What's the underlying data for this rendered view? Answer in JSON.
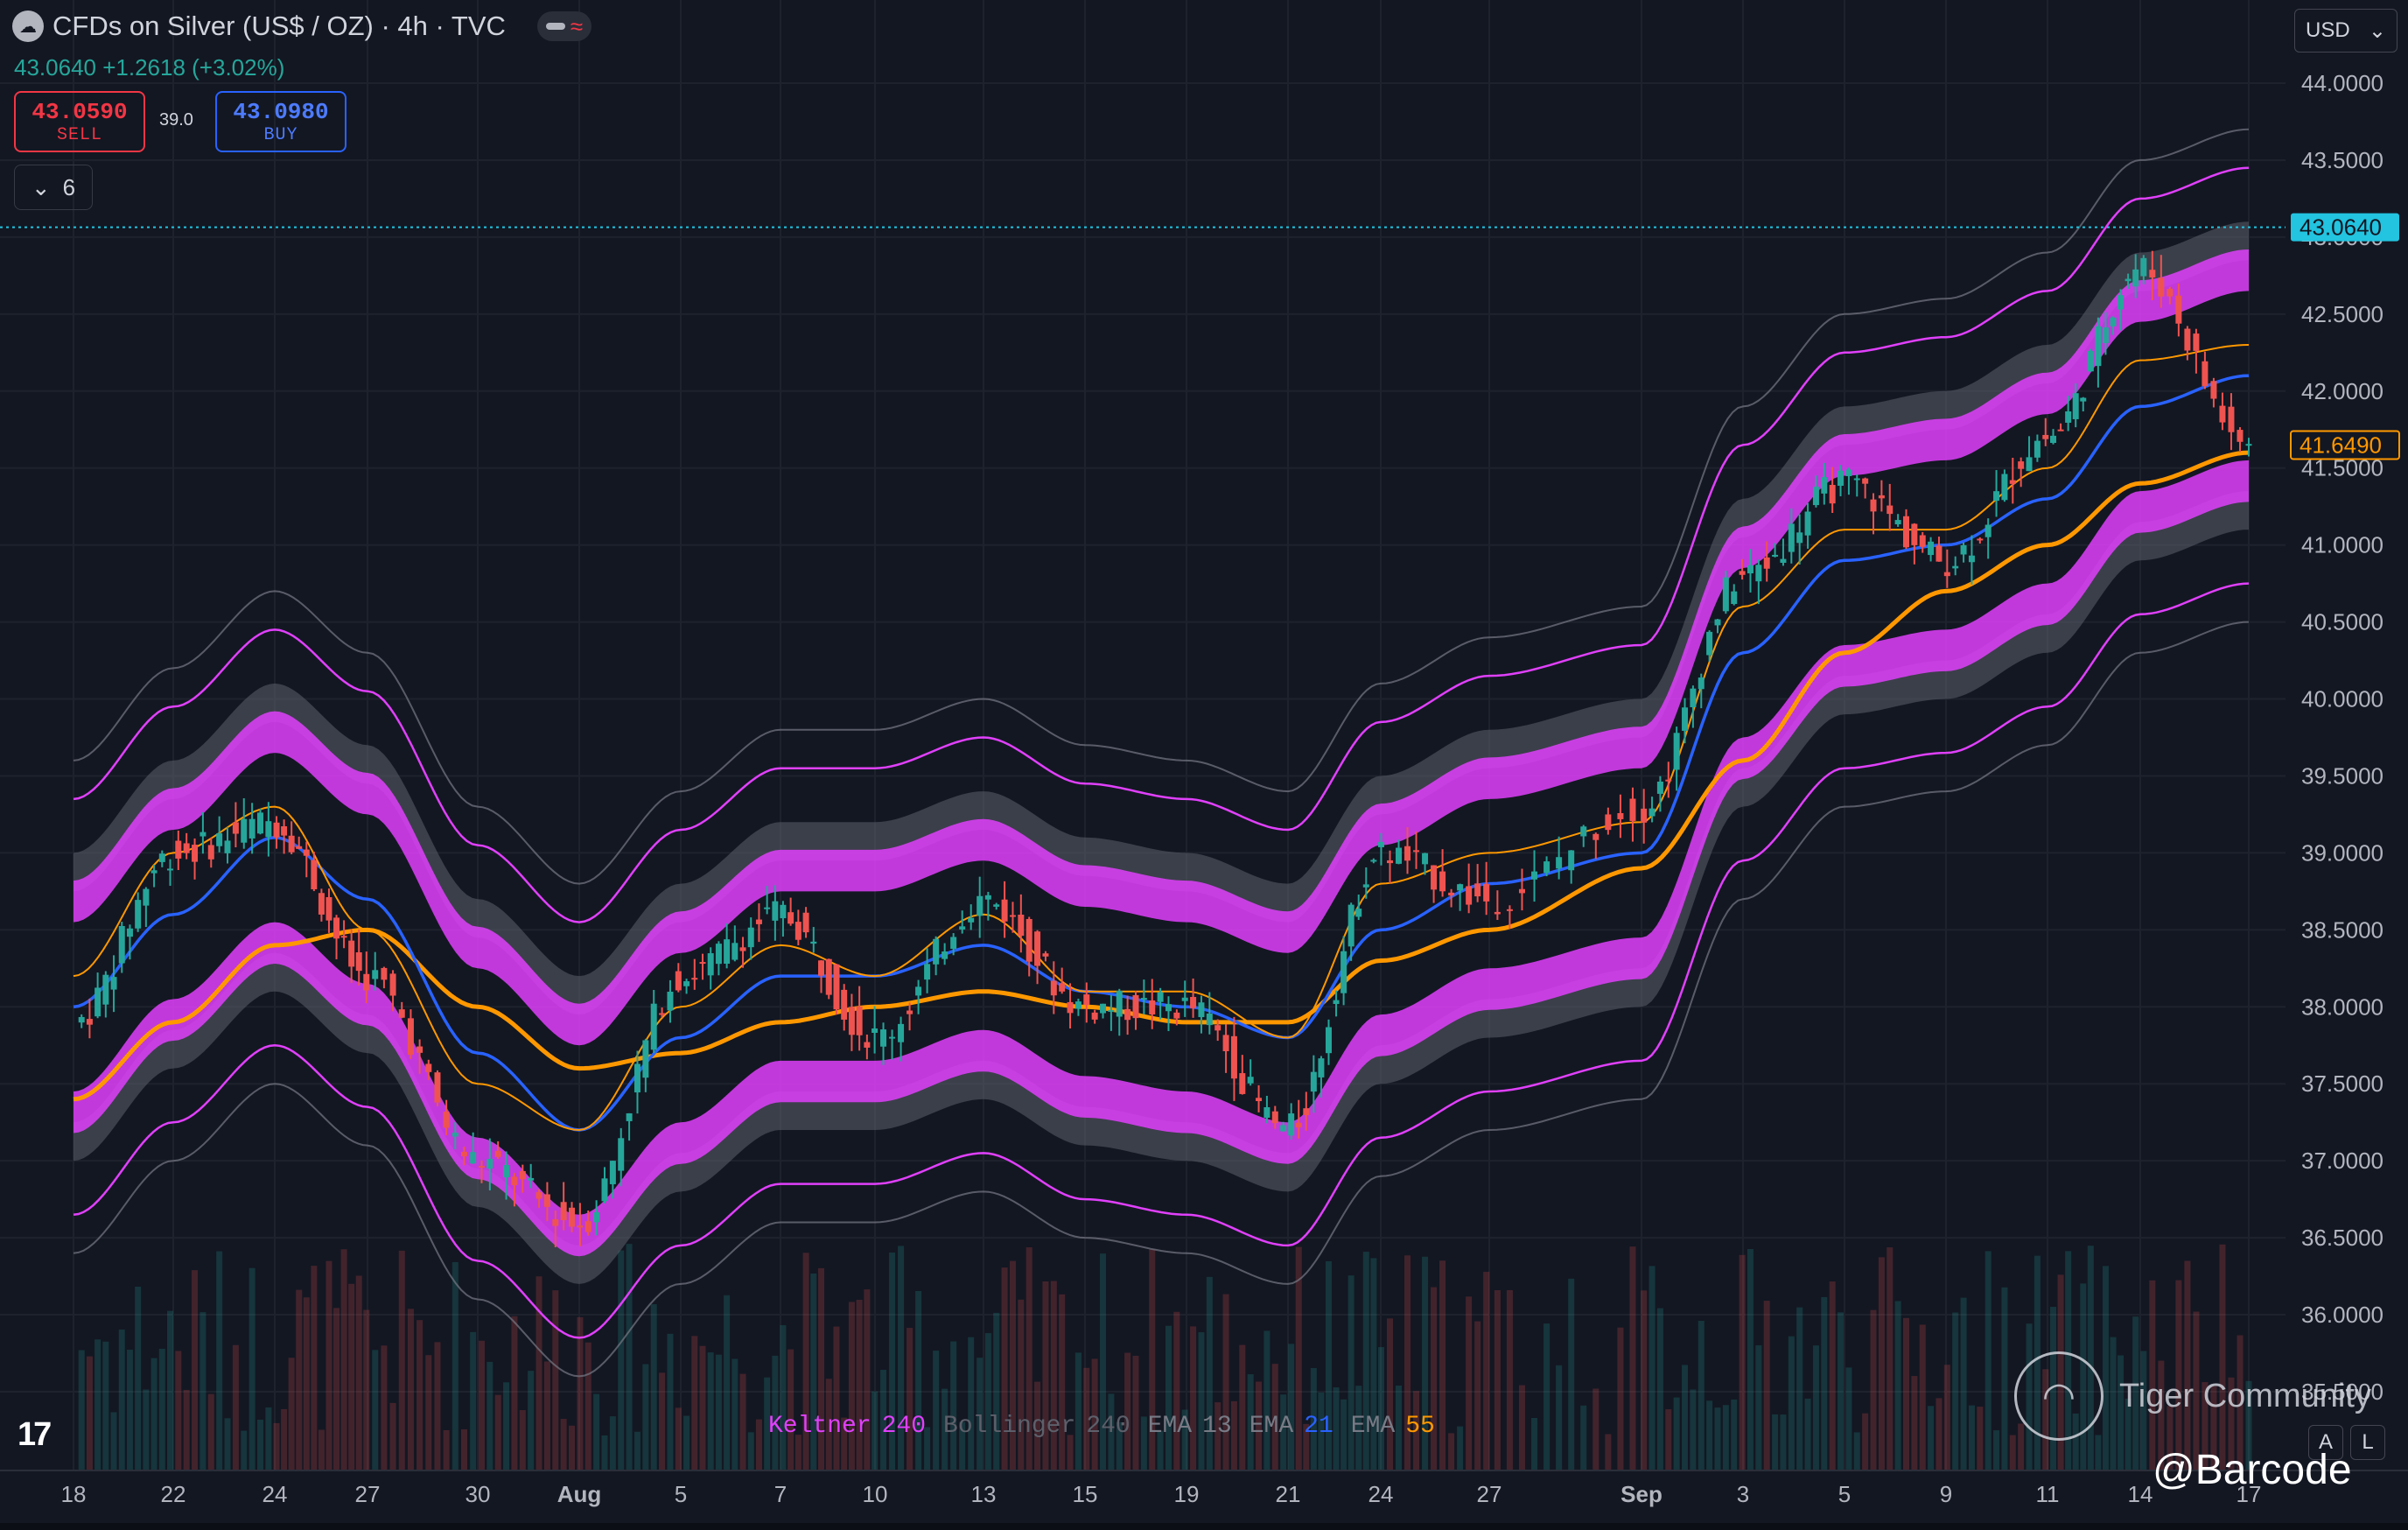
{
  "header": {
    "symbol_icon": "cloud-icon",
    "title": "CFDs on Silver (US$ / OZ) · 4h · TVC",
    "last_price_line": "43.0640 +1.2618 (+3.02%)"
  },
  "trade": {
    "sell_price": "43.0590",
    "sell_label": "SELL",
    "spread": "39.0",
    "buy_price": "43.0980",
    "buy_label": "BUY"
  },
  "indicators_toggle": {
    "icon": "chevron-down-icon",
    "count": "6"
  },
  "currency_select": {
    "value": "USD",
    "icon": "chevron-down-icon"
  },
  "price_axis": {
    "ticks": [
      "44.0000",
      "43.5000",
      "43.0000",
      "42.5000",
      "42.0000",
      "41.5000",
      "41.0000",
      "40.5000",
      "40.0000",
      "39.5000",
      "39.0000",
      "38.5000",
      "38.0000",
      "37.5000",
      "37.0000",
      "36.5000",
      "36.0000",
      "35.5000"
    ],
    "current_label": "43.0640",
    "ema_label": "41.6490"
  },
  "time_axis": [
    "18",
    "22",
    "24",
    "27",
    "30",
    "Aug",
    "5",
    "7",
    "10",
    "13",
    "15",
    "19",
    "21",
    "24",
    "27",
    "Sep",
    "3",
    "5",
    "9",
    "11",
    "14",
    "17"
  ],
  "legend": [
    {
      "name": "Keltner",
      "param": "240",
      "name_color": "#e040fb",
      "param_color": "#e040fb"
    },
    {
      "name": "Bollinger",
      "param": "240",
      "name_color": "#5d606b",
      "param_color": "#5d606b"
    },
    {
      "name": "EMA",
      "param": "13",
      "name_color": "#787b86",
      "param_color": "#787b86"
    },
    {
      "name": "EMA",
      "param": "21",
      "name_color": "#787b86",
      "param_color": "#2962ff"
    },
    {
      "name": "EMA",
      "param": "55",
      "name_color": "#787b86",
      "param_color": "#ff9800"
    }
  ],
  "watermark": {
    "text": "Tiger Community",
    "icon": "tiger-logo-icon"
  },
  "handle": "@Barcode",
  "buttons": {
    "auto": "A",
    "log": "L"
  },
  "colors": {
    "background": "#131722",
    "up": "#26a69a",
    "down": "#ef5350",
    "keltner": "#e040fb",
    "bollinger": "#787b86",
    "ema13": "#ff9800",
    "ema21": "#2962ff",
    "ema55": "#ff9800"
  },
  "chart_data": {
    "type": "line",
    "title": "CFDs on Silver (US$ / OZ) · 4h · TVC",
    "ylim": [
      35.5,
      44.0
    ],
    "x": [
      "18",
      "22",
      "24",
      "27",
      "30",
      "Aug",
      "5",
      "7",
      "10",
      "13",
      "15",
      "19",
      "21",
      "24",
      "27",
      "Sep",
      "3",
      "5",
      "9",
      "11",
      "14",
      "17"
    ],
    "series": [
      {
        "name": "EMA 55",
        "values": [
          37.4,
          37.9,
          38.4,
          38.5,
          38.0,
          37.6,
          37.7,
          37.9,
          38.0,
          38.1,
          38.0,
          37.9,
          37.9,
          38.3,
          38.5,
          38.9,
          39.6,
          40.3,
          40.7,
          41.0,
          41.4,
          41.6
        ]
      },
      {
        "name": "EMA 21",
        "values": [
          38.0,
          38.6,
          39.1,
          38.7,
          37.7,
          37.2,
          37.8,
          38.2,
          38.2,
          38.4,
          38.1,
          38.0,
          37.8,
          38.5,
          38.8,
          39.0,
          40.3,
          40.9,
          41.0,
          41.3,
          41.9,
          42.1
        ]
      },
      {
        "name": "EMA 13",
        "values": [
          38.1,
          38.9,
          39.2,
          38.4,
          37.4,
          37.1,
          37.9,
          38.3,
          38.1,
          38.5,
          38.0,
          38.0,
          37.7,
          38.7,
          38.9,
          39.1,
          40.5,
          41.0,
          41.0,
          41.4,
          42.1,
          42.2
        ]
      },
      {
        "name": "Close",
        "values": [
          37.9,
          39.0,
          39.2,
          38.2,
          37.0,
          36.6,
          38.2,
          38.6,
          37.8,
          38.7,
          38.0,
          38.0,
          37.2,
          39.0,
          38.7,
          39.3,
          40.8,
          41.4,
          40.9,
          41.7,
          42.8,
          41.65
        ]
      }
    ]
  }
}
